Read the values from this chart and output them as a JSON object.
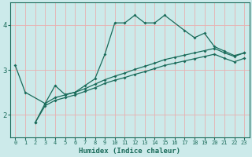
{
  "xlabel": "Humidex (Indice chaleur)",
  "bg_color": "#cceaea",
  "line_color": "#1a6b5a",
  "grid_color": "#b0d8d8",
  "xlim": [
    -0.5,
    23.5
  ],
  "ylim": [
    1.5,
    4.5
  ],
  "yticks": [
    2,
    3,
    4
  ],
  "xticks": [
    0,
    1,
    2,
    3,
    4,
    5,
    6,
    7,
    8,
    9,
    10,
    11,
    12,
    13,
    14,
    15,
    16,
    17,
    18,
    19,
    20,
    21,
    22,
    23
  ],
  "series1_x": [
    0,
    1,
    3,
    4,
    5,
    6,
    7,
    8,
    9,
    10,
    11,
    12,
    13,
    14,
    15,
    17,
    18,
    19,
    20,
    21,
    22,
    23
  ],
  "series1_y": [
    3.1,
    2.5,
    2.25,
    2.65,
    2.45,
    2.5,
    2.65,
    2.8,
    3.35,
    4.05,
    4.05,
    4.22,
    4.05,
    4.05,
    4.22,
    3.88,
    3.72,
    3.82,
    3.52,
    3.42,
    3.32,
    3.38
  ],
  "series2_x": [
    2,
    3,
    4,
    5,
    6,
    7,
    8,
    9,
    10,
    11,
    12,
    13,
    14,
    15,
    16,
    17,
    18,
    19,
    20,
    21,
    22,
    23
  ],
  "series2_y": [
    1.82,
    2.25,
    2.38,
    2.44,
    2.5,
    2.58,
    2.68,
    2.78,
    2.86,
    2.93,
    3.01,
    3.08,
    3.15,
    3.23,
    3.28,
    3.33,
    3.38,
    3.43,
    3.48,
    3.38,
    3.3,
    3.38
  ],
  "series3_x": [
    2,
    3,
    4,
    5,
    6,
    7,
    8,
    9,
    10,
    11,
    12,
    13,
    14,
    15,
    16,
    17,
    18,
    19,
    20,
    21,
    22,
    23
  ],
  "series3_y": [
    1.82,
    2.2,
    2.32,
    2.38,
    2.44,
    2.52,
    2.6,
    2.7,
    2.77,
    2.83,
    2.9,
    2.96,
    3.03,
    3.1,
    3.15,
    3.2,
    3.25,
    3.3,
    3.35,
    3.26,
    3.18,
    3.26
  ]
}
